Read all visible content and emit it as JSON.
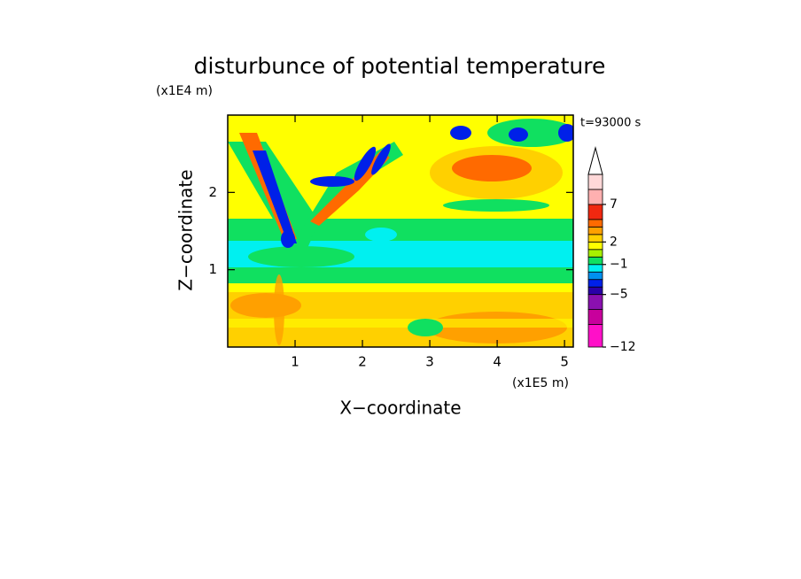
{
  "chart_data": {
    "type": "contour",
    "title": "disturbunce of potential temperature",
    "x_label": "X−coordinate",
    "y_label": "Z−coordinate",
    "x_unit_label": "(x1E5 m)",
    "y_unit_label": "(x1E4 m)",
    "annotation": "t=93000 s",
    "xlim": [
      0,
      5.13
    ],
    "xticks": [
      1,
      2,
      3,
      4,
      5
    ],
    "ylim": [
      0,
      3
    ],
    "yticks": [
      1,
      2
    ],
    "colorbar": {
      "levels": [
        -12,
        -9,
        -7,
        -5,
        -4,
        -3,
        -2,
        -1,
        0,
        1,
        2,
        3,
        4,
        5,
        7,
        9,
        11
      ],
      "colors": [
        "#ff10c8",
        "#c8009c",
        "#8a10b0",
        "#2a00a8",
        "#0020e8",
        "#0090f0",
        "#00f0f0",
        "#10e060",
        "#a8f000",
        "#ffff00",
        "#ffd000",
        "#ffa000",
        "#ff6a00",
        "#f02810",
        "#ffb0b0",
        "#ffd8d8"
      ],
      "ticks": [
        {
          "value": -12,
          "label": "−12"
        },
        {
          "value": -5,
          "label": "−5"
        },
        {
          "value": -1,
          "label": "−1"
        },
        2,
        7
      ],
      "extend_max": true
    }
  }
}
